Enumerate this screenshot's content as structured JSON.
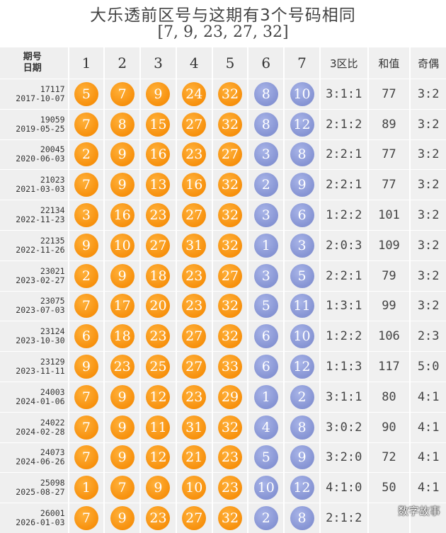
{
  "title": "大乐透前区号与这期有3个号码相同",
  "subtitle": "[7, 9, 23, 27, 32]",
  "header": {
    "issue_label": "期号",
    "date_label": "日期",
    "cols": [
      "1",
      "2",
      "3",
      "4",
      "5",
      "6",
      "7"
    ],
    "ratio_label": "3区比",
    "sum_label": "和值",
    "oe_label": "奇偶"
  },
  "rows": [
    {
      "issue": "17117",
      "date": "2017-10-07",
      "front": [
        "5",
        "7",
        "9",
        "24",
        "32"
      ],
      "back": [
        "8",
        "10"
      ],
      "ratio": "3:1:1",
      "sum": "77",
      "oe": "3:2"
    },
    {
      "issue": "19059",
      "date": "2019-05-25",
      "front": [
        "7",
        "8",
        "15",
        "27",
        "32"
      ],
      "back": [
        "8",
        "12"
      ],
      "ratio": "2:1:2",
      "sum": "89",
      "oe": "3:2"
    },
    {
      "issue": "20045",
      "date": "2020-06-03",
      "front": [
        "2",
        "9",
        "16",
        "23",
        "27"
      ],
      "back": [
        "3",
        "8"
      ],
      "ratio": "2:2:1",
      "sum": "77",
      "oe": "3:2"
    },
    {
      "issue": "21023",
      "date": "2021-03-03",
      "front": [
        "7",
        "9",
        "13",
        "16",
        "32"
      ],
      "back": [
        "2",
        "9"
      ],
      "ratio": "2:2:1",
      "sum": "77",
      "oe": "3:2"
    },
    {
      "issue": "22134",
      "date": "2022-11-23",
      "front": [
        "3",
        "16",
        "23",
        "27",
        "32"
      ],
      "back": [
        "3",
        "6"
      ],
      "ratio": "1:2:2",
      "sum": "101",
      "oe": "3:2"
    },
    {
      "issue": "22135",
      "date": "2022-11-26",
      "front": [
        "9",
        "10",
        "27",
        "31",
        "32"
      ],
      "back": [
        "1",
        "3"
      ],
      "ratio": "2:0:3",
      "sum": "109",
      "oe": "3:2"
    },
    {
      "issue": "23021",
      "date": "2023-02-27",
      "front": [
        "2",
        "9",
        "18",
        "23",
        "27"
      ],
      "back": [
        "3",
        "5"
      ],
      "ratio": "2:2:1",
      "sum": "79",
      "oe": "3:2"
    },
    {
      "issue": "23075",
      "date": "2023-07-03",
      "front": [
        "7",
        "17",
        "20",
        "23",
        "32"
      ],
      "back": [
        "5",
        "11"
      ],
      "ratio": "1:3:1",
      "sum": "99",
      "oe": "3:2"
    },
    {
      "issue": "23124",
      "date": "2023-10-30",
      "front": [
        "6",
        "18",
        "23",
        "27",
        "32"
      ],
      "back": [
        "6",
        "10"
      ],
      "ratio": "1:2:2",
      "sum": "106",
      "oe": "2:3"
    },
    {
      "issue": "23129",
      "date": "2023-11-11",
      "front": [
        "9",
        "23",
        "25",
        "27",
        "33"
      ],
      "back": [
        "6",
        "12"
      ],
      "ratio": "1:1:3",
      "sum": "117",
      "oe": "5:0"
    },
    {
      "issue": "24003",
      "date": "2024-01-06",
      "front": [
        "7",
        "9",
        "12",
        "23",
        "29"
      ],
      "back": [
        "1",
        "2"
      ],
      "ratio": "3:1:1",
      "sum": "80",
      "oe": "4:1"
    },
    {
      "issue": "24022",
      "date": "2024-02-28",
      "front": [
        "7",
        "9",
        "11",
        "31",
        "32"
      ],
      "back": [
        "4",
        "8"
      ],
      "ratio": "3:0:2",
      "sum": "90",
      "oe": "4:1"
    },
    {
      "issue": "24073",
      "date": "2024-06-26",
      "front": [
        "7",
        "9",
        "12",
        "21",
        "23"
      ],
      "back": [
        "5",
        "9"
      ],
      "ratio": "3:2:0",
      "sum": "72",
      "oe": "4:1"
    },
    {
      "issue": "25098",
      "date": "2025-08-27",
      "front": [
        "1",
        "7",
        "9",
        "10",
        "23"
      ],
      "back": [
        "10",
        "12"
      ],
      "ratio": "4:1:0",
      "sum": "50",
      "oe": "4:1"
    },
    {
      "issue": "26001",
      "date": "2026-01-03",
      "front": [
        "7",
        "9",
        "23",
        "27",
        "32"
      ],
      "back": [
        "2",
        "8"
      ],
      "ratio": "2:1:2",
      "sum": "",
      "oe": ""
    }
  ],
  "watermark": "数字故事",
  "colors": {
    "front_ball": "#f7900c",
    "back_ball": "#8593d3",
    "cell_bg": "#efefef"
  }
}
